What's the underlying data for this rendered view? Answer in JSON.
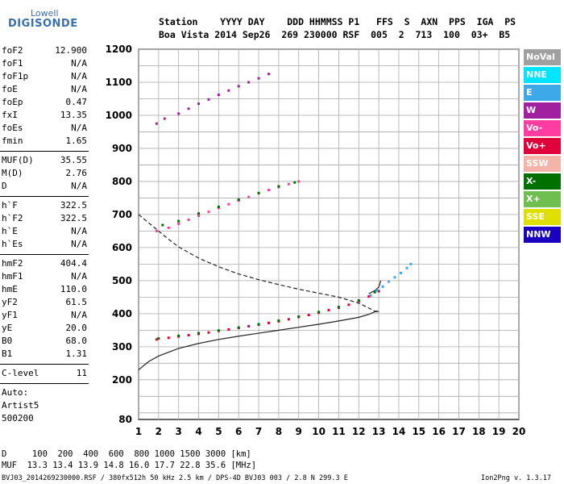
{
  "logo": {
    "top": "Lowell",
    "main": "DIGISONDE"
  },
  "header": {
    "row1": "Station    YYYY DAY    DDD HHMMSS P1   FFS  S  AXN  PPS  IGA  PS",
    "row2": "Boa Vista 2014 Sep26  269 230000 RSF  005  2  713  100  03+  B5"
  },
  "params_group1": [
    {
      "k": "foF2",
      "v": "12.900"
    },
    {
      "k": "foF1",
      "v": "N/A"
    },
    {
      "k": "foF1p",
      "v": "N/A"
    },
    {
      "k": "foE",
      "v": "N/A"
    },
    {
      "k": "foEp",
      "v": "0.47"
    },
    {
      "k": "fxI",
      "v": "13.35"
    },
    {
      "k": "foEs",
      "v": "N/A"
    },
    {
      "k": "fmin",
      "v": "1.65"
    }
  ],
  "params_group2": [
    {
      "k": "MUF(D)",
      "v": "35.55"
    },
    {
      "k": "M(D)",
      "v": "2.76"
    },
    {
      "k": "D",
      "v": "N/A"
    }
  ],
  "params_group3": [
    {
      "k": "h`F",
      "v": "322.5"
    },
    {
      "k": "h`F2",
      "v": "322.5"
    },
    {
      "k": "h`E",
      "v": "N/A"
    },
    {
      "k": "h`Es",
      "v": "N/A"
    }
  ],
  "params_group4": [
    {
      "k": "hmF2",
      "v": "404.4"
    },
    {
      "k": "hmF1",
      "v": "N/A"
    },
    {
      "k": "hmE",
      "v": "110.0"
    },
    {
      "k": "yF2",
      "v": "61.5"
    },
    {
      "k": "yF1",
      "v": "N/A"
    },
    {
      "k": "yE",
      "v": "20.0"
    },
    {
      "k": "B0",
      "v": "68.0"
    },
    {
      "k": "B1",
      "v": "1.31"
    }
  ],
  "params_group5": [
    {
      "k": "C-level",
      "v": "11"
    }
  ],
  "autoscaling": {
    "line1": "Auto:",
    "line2": "Artist5",
    "line3": "500200"
  },
  "legend": [
    {
      "label": "NoVal",
      "color": "#a0a0a0"
    },
    {
      "label": "NNE",
      "color": "#00e5ff"
    },
    {
      "label": "E",
      "color": "#3da9e8"
    },
    {
      "label": "W",
      "color": "#a020a0"
    },
    {
      "label": "Vo-",
      "color": "#ff3da0"
    },
    {
      "label": "Vo+",
      "color": "#e0003a"
    },
    {
      "label": "SSW",
      "color": "#f4b4a8"
    },
    {
      "label": "X-",
      "color": "#007000"
    },
    {
      "label": "X+",
      "color": "#6fbf50"
    },
    {
      "label": "SSE",
      "color": "#e0e000"
    },
    {
      "label": "NNW",
      "color": "#1a00c0"
    }
  ],
  "footer": {
    "row1": "D     100  200  400  600  800 1000 1500 3000 [km]",
    "row2": "MUF  13.3 13.4 13.9 14.8 16.0 17.7 22.8 35.6 [MHz]",
    "row3": "BVJ03_2014269230000.RSF / 380fx512h 50 kHz 2.5 km / DPS-4D BVJ03 003 / 2.8 N 299.3 E",
    "version": "Ion2Png v. 1.3.17"
  },
  "chart_data": {
    "type": "scatter",
    "x_ticks": [
      1,
      2,
      3,
      4,
      5,
      6,
      7,
      8,
      9,
      10,
      11,
      12,
      13,
      14,
      15,
      16,
      17,
      18,
      19,
      20
    ],
    "y_ticks": [
      80,
      200,
      300,
      400,
      500,
      600,
      700,
      800,
      900,
      1000,
      1100,
      1200
    ],
    "xlim": [
      1,
      20
    ],
    "ylim": [
      80,
      1200
    ],
    "grid": true,
    "series": [
      {
        "color": "#e0003a",
        "x": [
          1.9,
          2.5,
          3,
          3.5,
          4,
          4.5,
          5,
          5.5,
          6,
          6.5,
          7,
          7.5,
          8,
          8.5,
          9,
          9.5,
          10,
          10.5,
          11,
          11.5,
          12,
          12.5,
          13
        ],
        "y": [
          322,
          327,
          331,
          335,
          339,
          343,
          348,
          352,
          357,
          362,
          367,
          372,
          377,
          383,
          390,
          396,
          403,
          411,
          418,
          427,
          438,
          452,
          468
        ]
      },
      {
        "color": "#007000",
        "x": [
          2,
          3,
          4,
          5,
          6,
          7,
          8,
          9,
          10,
          11,
          12,
          12.8
        ],
        "y": [
          325,
          333,
          341,
          349,
          358,
          368,
          379,
          391,
          405,
          420,
          440,
          465
        ]
      },
      {
        "color": "#3da9e8",
        "x": [
          12.6,
          12.9,
          13.2,
          13.5,
          13.8,
          14.1,
          14.4,
          14.6
        ],
        "y": [
          455,
          470,
          482,
          497,
          510,
          523,
          538,
          550
        ]
      },
      {
        "color": "#ff3da0",
        "x": [
          1.9,
          2.5,
          3,
          3.5,
          4,
          4.5,
          5,
          5.5,
          6,
          6.5,
          7,
          7.5,
          8,
          8.5,
          9
        ],
        "y": [
          650,
          660,
          672,
          684,
          696,
          708,
          720,
          731,
          742,
          753,
          764,
          774,
          783,
          792,
          800
        ]
      },
      {
        "color": "#007000",
        "x": [
          2.2,
          3,
          4,
          5,
          6,
          7,
          8,
          8.8
        ],
        "y": [
          668,
          680,
          703,
          723,
          745,
          765,
          785,
          797
        ]
      },
      {
        "color": "#a020a0",
        "x": [
          1.9,
          2.3,
          3,
          3.5,
          4,
          4.5,
          5,
          5.5,
          6,
          6.5,
          7,
          7.5
        ],
        "y": [
          975,
          990,
          1005,
          1020,
          1035,
          1048,
          1062,
          1075,
          1088,
          1100,
          1112,
          1125
        ]
      }
    ],
    "profile_line": {
      "x": [
        1,
        1.5,
        2,
        3,
        4,
        5,
        6,
        7,
        8,
        9,
        10,
        11,
        12,
        12.5,
        12.9,
        13
      ],
      "y": [
        230,
        255,
        272,
        295,
        310,
        322,
        332,
        341,
        350,
        359,
        368,
        378,
        389,
        398,
        408,
        405
      ]
    },
    "profile_dashed": {
      "x": [
        1,
        1.5,
        2,
        2.5,
        3,
        4,
        5,
        6,
        7,
        8,
        9,
        10,
        11,
        12,
        12.9
      ],
      "y": [
        700,
        675,
        650,
        625,
        602,
        568,
        542,
        520,
        503,
        488,
        474,
        462,
        450,
        432,
        405
      ]
    },
    "profile_upper": {
      "x": [
        12.5,
        12.8,
        13,
        13.1
      ],
      "y": [
        460,
        470,
        480,
        500
      ]
    }
  }
}
